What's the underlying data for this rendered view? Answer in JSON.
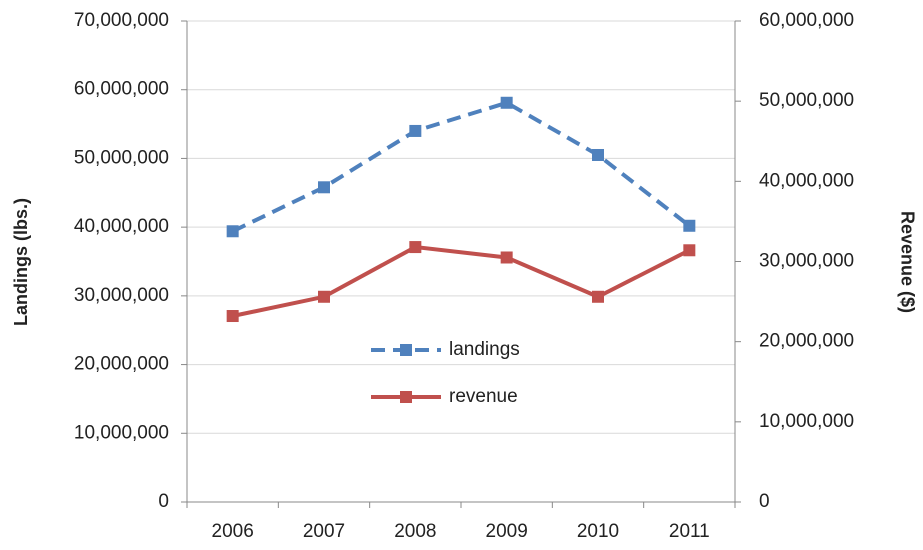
{
  "chart_data": {
    "type": "line",
    "categories": [
      "2006",
      "2007",
      "2008",
      "2009",
      "2010",
      "2011"
    ],
    "y_label": "Landings (lbs.)",
    "y2_label": "Revenue ($)",
    "series": [
      {
        "name": "landings",
        "color": "#4f81bd",
        "dashed": true,
        "values": [
          39400000,
          45800000,
          54000000,
          58100000,
          50500000,
          40200000
        ]
      },
      {
        "name": "revenue",
        "color": "#c0504d",
        "dashed": false,
        "axis": "y2",
        "values": [
          23200000,
          25600000,
          31800000,
          30500000,
          25600000,
          31400000
        ]
      }
    ],
    "ylim": [
      0,
      70000000
    ],
    "yticks": [
      0,
      {
        "value": 10000000,
        "label": "10,000,000"
      },
      {
        "value": 20000000,
        "label": "20,000,000"
      },
      {
        "value": 30000000,
        "label": "30,000,000"
      },
      {
        "value": 40000000,
        "label": "40,000,000"
      },
      {
        "value": 50000000,
        "label": "50,000,000"
      },
      {
        "value": 60000000,
        "label": "60,000,000"
      },
      {
        "value": 70000000,
        "label": "70,000,000"
      }
    ],
    "y2lim": [
      0,
      60000000
    ],
    "y2ticks": [
      0,
      {
        "value": 10000000,
        "label": "10,000,000"
      },
      {
        "value": 20000000,
        "label": "20,000,000"
      },
      {
        "value": 30000000,
        "label": "30,000,000"
      },
      {
        "value": 40000000,
        "label": "40,000,000"
      },
      {
        "value": 50000000,
        "label": "50,000,000"
      },
      {
        "value": 60000000,
        "label": "60,000,000"
      }
    ],
    "grid": true,
    "legend": "center"
  }
}
